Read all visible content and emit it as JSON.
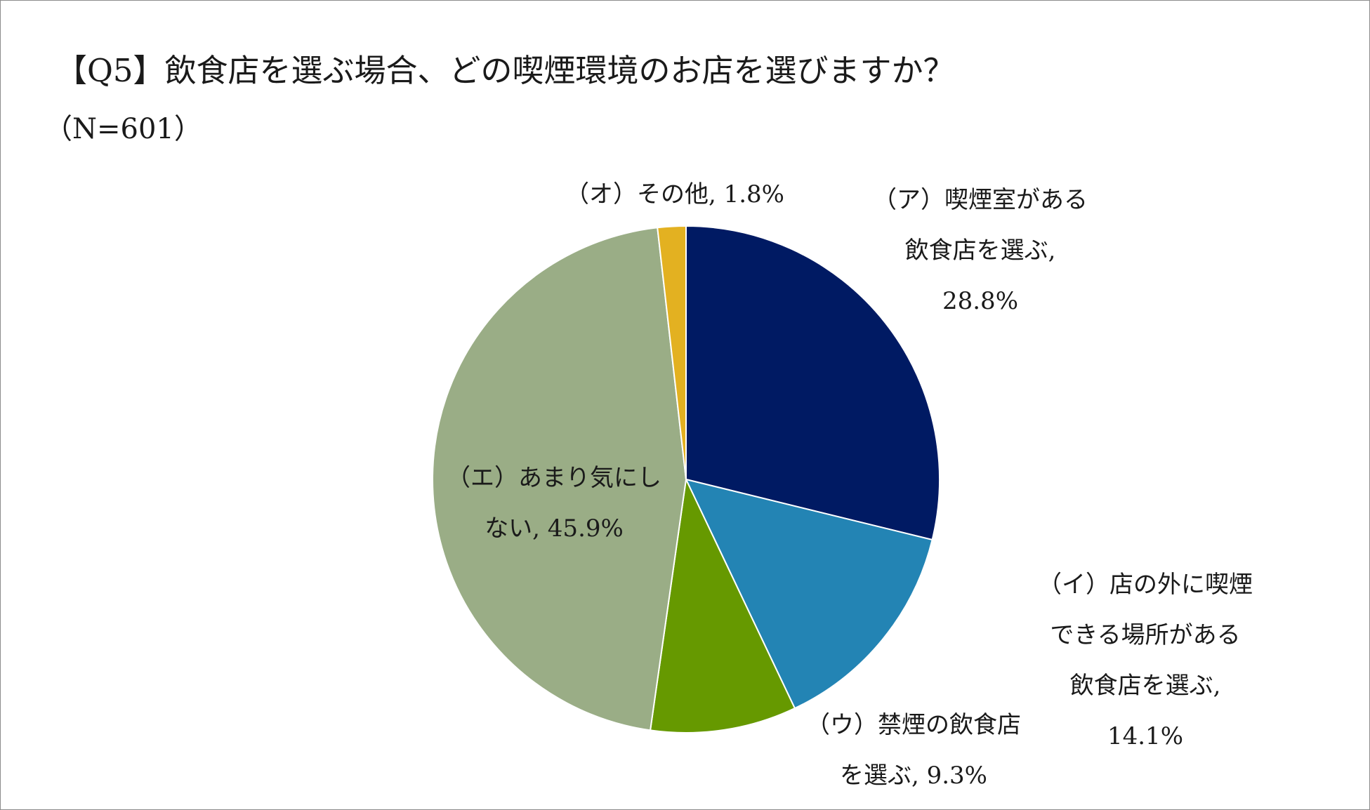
{
  "chart_data": {
    "type": "pie",
    "title": "【Q5】飲食店を選ぶ場合、どの喫煙環境のお店を選びますか？",
    "subtitle": "（N=601）",
    "slices": [
      {
        "lines": [
          "（ア）喫煙室がある",
          "飲食店を選ぶ,",
          "28.8%"
        ],
        "value": 28.8,
        "color": "#001A63"
      },
      {
        "lines": [
          "（イ）店の外に喫煙",
          "できる場所がある",
          "飲食店を選ぶ,",
          "14.1%"
        ],
        "value": 14.1,
        "color": "#2384B4"
      },
      {
        "lines": [
          "（ウ）禁煙の飲食店",
          "を選ぶ, 9.3%"
        ],
        "value": 9.3,
        "color": "#669900"
      },
      {
        "lines": [
          "（エ）あまり気にし",
          "ない, 45.9%"
        ],
        "value": 45.9,
        "color": "#9AAD86"
      },
      {
        "lines": [
          "（オ）その他, 1.8%"
        ],
        "value": 1.8,
        "color": "#E3B121"
      }
    ]
  }
}
